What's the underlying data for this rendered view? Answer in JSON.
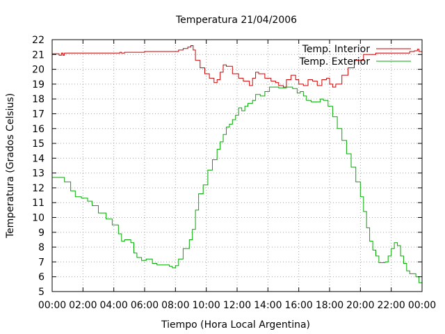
{
  "chart_data": {
    "type": "line",
    "title": "Temperatura 21/04/2006",
    "xlabel": "Tiempo (Hora Local Argentina)",
    "ylabel": "Temperatura (Grados Celsius)",
    "xlim": [
      0,
      24
    ],
    "ylim": [
      5,
      22
    ],
    "x_tick_labels": [
      "00:00",
      "02:00",
      "04:00",
      "06:00",
      "08:00",
      "10:00",
      "12:00",
      "14:00",
      "16:00",
      "18:00",
      "20:00",
      "22:00",
      "00:00"
    ],
    "y_ticks": [
      5,
      6,
      7,
      8,
      9,
      10,
      11,
      12,
      13,
      14,
      15,
      16,
      17,
      18,
      19,
      20,
      21,
      22
    ],
    "grid": true,
    "legend_position": "top-right",
    "series": [
      {
        "name": "Temp. Interior",
        "color": "#cc0000",
        "points": [
          [
            0,
            21.05
          ],
          [
            0.3,
            21.05
          ],
          [
            0.45,
            20.95
          ],
          [
            0.6,
            21.1
          ],
          [
            0.7,
            20.95
          ],
          [
            0.8,
            21.1
          ],
          [
            2,
            21.1
          ],
          [
            3.5,
            21.1
          ],
          [
            4.4,
            21.15
          ],
          [
            4.5,
            21.1
          ],
          [
            4.7,
            21.15
          ],
          [
            6,
            21.2
          ],
          [
            7.5,
            21.2
          ],
          [
            8.2,
            21.3
          ],
          [
            8.5,
            21.4
          ],
          [
            8.8,
            21.5
          ],
          [
            9.0,
            21.6
          ],
          [
            9.15,
            21.3
          ],
          [
            9.3,
            20.6
          ],
          [
            9.6,
            20.1
          ],
          [
            9.9,
            19.7
          ],
          [
            10.2,
            19.4
          ],
          [
            10.5,
            19.1
          ],
          [
            10.7,
            19.3
          ],
          [
            10.9,
            19.8
          ],
          [
            11.1,
            20.3
          ],
          [
            11.3,
            20.2
          ],
          [
            11.7,
            19.7
          ],
          [
            12.1,
            19.4
          ],
          [
            12.4,
            19.2
          ],
          [
            12.8,
            18.9
          ],
          [
            13,
            19.4
          ],
          [
            13.2,
            19.8
          ],
          [
            13.4,
            19.7
          ],
          [
            13.8,
            19.4
          ],
          [
            14.2,
            19.2
          ],
          [
            14.5,
            19.1
          ],
          [
            14.7,
            18.9
          ],
          [
            15,
            18.8
          ],
          [
            15.2,
            19.3
          ],
          [
            15.5,
            19.6
          ],
          [
            15.8,
            19.3
          ],
          [
            16,
            19.0
          ],
          [
            16.3,
            18.9
          ],
          [
            16.6,
            19.3
          ],
          [
            16.9,
            19.2
          ],
          [
            17.2,
            18.9
          ],
          [
            17.5,
            19.3
          ],
          [
            17.8,
            19.4
          ],
          [
            18.0,
            19.0
          ],
          [
            18.2,
            18.8
          ],
          [
            18.4,
            19.0
          ],
          [
            18.8,
            19.6
          ],
          [
            19.2,
            20.1
          ],
          [
            19.6,
            20.6
          ],
          [
            20.2,
            21.0
          ],
          [
            21,
            21.1
          ],
          [
            22.5,
            21.1
          ],
          [
            23.2,
            21.2
          ],
          [
            23.5,
            21.25
          ],
          [
            23.7,
            21.35
          ],
          [
            23.8,
            21.2
          ],
          [
            24,
            21.25
          ]
        ]
      },
      {
        "name": "Temp. Exterior",
        "color": "#00aa00",
        "points": [
          [
            0,
            12.7
          ],
          [
            0.4,
            12.7
          ],
          [
            0.8,
            12.4
          ],
          [
            1.2,
            11.8
          ],
          [
            1.5,
            11.4
          ],
          [
            1.9,
            11.3
          ],
          [
            2.3,
            11.1
          ],
          [
            2.6,
            10.8
          ],
          [
            3,
            10.3
          ],
          [
            3.5,
            9.9
          ],
          [
            3.9,
            9.5
          ],
          [
            4.3,
            8.9
          ],
          [
            4.5,
            8.4
          ],
          [
            4.7,
            8.5
          ],
          [
            4.9,
            8.5
          ],
          [
            5.1,
            8.3
          ],
          [
            5.3,
            7.6
          ],
          [
            5.5,
            7.3
          ],
          [
            5.8,
            7.1
          ],
          [
            6.1,
            7.2
          ],
          [
            6.3,
            7.2
          ],
          [
            6.5,
            6.9
          ],
          [
            6.8,
            6.8
          ],
          [
            7.2,
            6.8
          ],
          [
            7.6,
            6.7
          ],
          [
            7.8,
            6.6
          ],
          [
            8,
            6.75
          ],
          [
            8.2,
            7.2
          ],
          [
            8.5,
            7.9
          ],
          [
            8.9,
            8.5
          ],
          [
            9.1,
            9.2
          ],
          [
            9.3,
            10.5
          ],
          [
            9.5,
            11.6
          ],
          [
            9.8,
            12.2
          ],
          [
            10.1,
            13.2
          ],
          [
            10.4,
            13.9
          ],
          [
            10.7,
            14.6
          ],
          [
            10.9,
            15.1
          ],
          [
            11.1,
            15.6
          ],
          [
            11.3,
            16.1
          ],
          [
            11.5,
            16.3
          ],
          [
            11.7,
            16.6
          ],
          [
            11.9,
            16.9
          ],
          [
            12.1,
            17.4
          ],
          [
            12.3,
            17.2
          ],
          [
            12.5,
            17.5
          ],
          [
            12.7,
            17.7
          ],
          [
            13,
            17.9
          ],
          [
            13.2,
            18.3
          ],
          [
            13.5,
            18.2
          ],
          [
            13.8,
            18.5
          ],
          [
            14.1,
            18.8
          ],
          [
            14.4,
            18.8
          ],
          [
            14.7,
            18.75
          ],
          [
            15.2,
            18.8
          ],
          [
            15.6,
            18.7
          ],
          [
            15.9,
            18.4
          ],
          [
            16.1,
            18.5
          ],
          [
            16.3,
            18.2
          ],
          [
            16.5,
            17.9
          ],
          [
            16.8,
            17.8
          ],
          [
            17.1,
            17.8
          ],
          [
            17.4,
            18.0
          ],
          [
            17.6,
            17.9
          ],
          [
            17.9,
            17.5
          ],
          [
            18.2,
            16.8
          ],
          [
            18.5,
            16
          ],
          [
            18.8,
            15.2
          ],
          [
            19.1,
            14.3
          ],
          [
            19.4,
            13.4
          ],
          [
            19.7,
            12.4
          ],
          [
            20,
            11.4
          ],
          [
            20.2,
            10.4
          ],
          [
            20.4,
            9.3
          ],
          [
            20.6,
            8.4
          ],
          [
            20.8,
            7.8
          ],
          [
            21,
            7.4
          ],
          [
            21.2,
            6.95
          ],
          [
            21.4,
            6.95
          ],
          [
            21.6,
            7.0
          ],
          [
            21.8,
            7.4
          ],
          [
            22,
            7.9
          ],
          [
            22.2,
            8.3
          ],
          [
            22.4,
            8.1
          ],
          [
            22.6,
            7.4
          ],
          [
            22.8,
            6.9
          ],
          [
            23,
            6.4
          ],
          [
            23.2,
            6.2
          ],
          [
            23.4,
            6.2
          ],
          [
            23.6,
            6.0
          ],
          [
            23.8,
            5.6
          ],
          [
            24,
            4.95
          ]
        ]
      }
    ]
  }
}
